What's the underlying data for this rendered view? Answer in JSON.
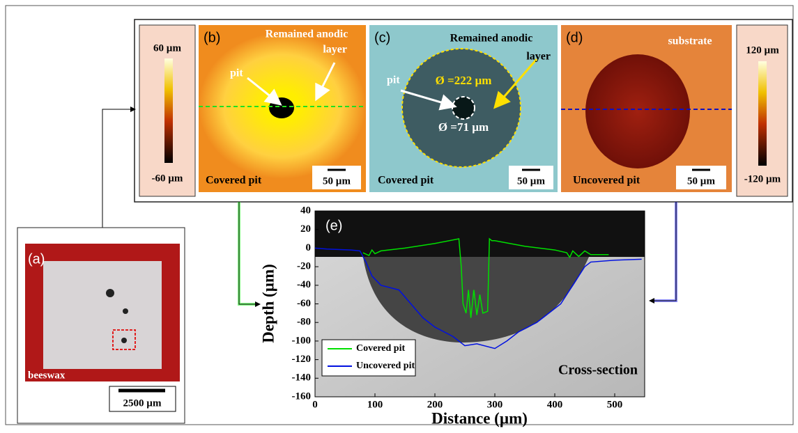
{
  "figure": {
    "colorbar_left": {
      "max": "60 µm",
      "min": "-60 µm"
    },
    "colorbar_right": {
      "max": "120 µm",
      "min": "-120 µm"
    },
    "panel_a": {
      "label": "(a)",
      "note": "beeswax",
      "scale": "2500 µm"
    },
    "panel_b": {
      "label": "(b)",
      "layer_line1": "Remained anodic",
      "layer_line2": "layer",
      "pit": "pit",
      "caption": "Covered pit",
      "scale": "50 µm"
    },
    "panel_c": {
      "label": "(c)",
      "layer_line1": "Remained anodic",
      "layer_line2": "layer",
      "pit": "pit",
      "d_outer": "Ø =222 µm",
      "d_inner": "Ø =71 µm",
      "caption": "Covered pit",
      "scale": "50 µm"
    },
    "panel_d": {
      "label": "(d)",
      "note": "substrate",
      "caption": "Uncovered pit",
      "scale": "50 µm"
    }
  },
  "chart_data": {
    "type": "line",
    "label": "(e)",
    "annotation": "Cross-section",
    "x_label": "Distance (µm)",
    "y_label": "Depth (µm)",
    "xlim": [
      0,
      550
    ],
    "xticks": [
      0,
      100,
      200,
      300,
      400,
      500
    ],
    "ylim": [
      -160,
      40
    ],
    "yticks": [
      -160,
      -140,
      -120,
      -100,
      -80,
      -60,
      -40,
      -20,
      0,
      20,
      40
    ],
    "legend": "lower left",
    "series": [
      {
        "name": "Covered pit",
        "color": "#00e000",
        "x": [
          80,
          90,
          95,
          100,
          110,
          150,
          200,
          240,
          244,
          247,
          252,
          256,
          260,
          265,
          270,
          275,
          280,
          288,
          291,
          295,
          300,
          350,
          400,
          420,
          425,
          430,
          440,
          450,
          460,
          490
        ],
        "values": [
          -5,
          -8,
          -2,
          -6,
          -3,
          0,
          5,
          10,
          -20,
          -60,
          -70,
          -45,
          -75,
          -45,
          -72,
          -50,
          -70,
          -68,
          10,
          8,
          8,
          2,
          -2,
          -5,
          -10,
          -3,
          -9,
          -3,
          -7,
          -7
        ]
      },
      {
        "name": "Uncovered pit",
        "color": "#0010e0",
        "x": [
          0,
          20,
          60,
          75,
          85,
          95,
          110,
          140,
          160,
          180,
          200,
          230,
          250,
          270,
          300,
          320,
          340,
          370,
          390,
          410,
          430,
          450,
          460,
          500,
          545
        ],
        "values": [
          0,
          -1,
          -2,
          -3,
          -15,
          -30,
          -40,
          -45,
          -60,
          -75,
          -85,
          -95,
          -105,
          -103,
          -108,
          -100,
          -90,
          -80,
          -70,
          -60,
          -40,
          -20,
          -15,
          -13,
          -12
        ]
      }
    ]
  }
}
